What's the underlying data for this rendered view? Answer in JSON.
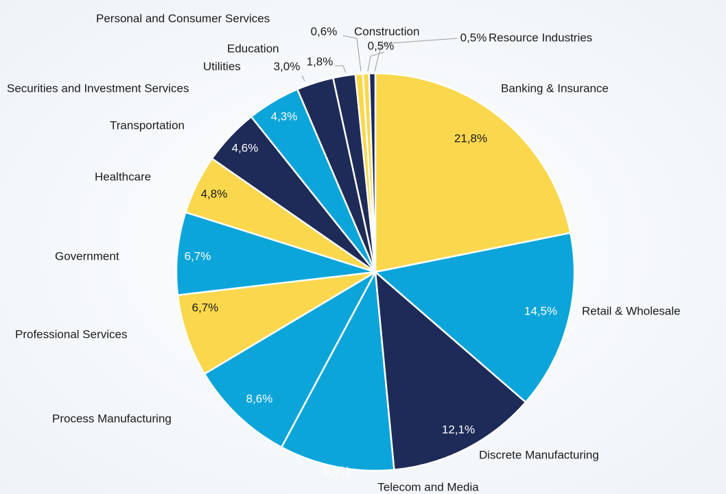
{
  "chart_data": {
    "type": "pie",
    "categories": [
      "Banking & Insurance",
      "Retail & Wholesale",
      "Discrete Manufacturing",
      "Telecom and Media",
      "Process Manufacturing",
      "Professional Services",
      "Government",
      "Healthcare",
      "Transportation",
      "Securities and Investment Services",
      "Utilities",
      "Education",
      "Personal and Consumer Services",
      "Construction",
      "Resource Industries"
    ],
    "values": [
      21.8,
      14.5,
      12.1,
      9.3,
      8.6,
      6.7,
      6.7,
      4.8,
      4.6,
      4.3,
      3.0,
      1.8,
      0.6,
      0.5,
      0.5
    ],
    "value_labels": [
      "21,8%",
      "14,5%",
      "12,1%",
      "9,3%",
      "8,6%",
      "6,7%",
      "6,7%",
      "4,8%",
      "4,6%",
      "4,3%",
      "3,0%",
      "1,8%",
      "0,6%",
      "0,5%",
      "0,5%"
    ],
    "colors": [
      "#fad74d",
      "#0ba5da",
      "#1e2a57",
      "#0ba5da",
      "#0ba5da",
      "#fad74d",
      "#0ba5da",
      "#fad74d",
      "#1e2a57",
      "#0ba5da",
      "#1e2a57",
      "#1e2a57",
      "#fad74d",
      "#fad74d",
      "#1e2a57"
    ]
  }
}
